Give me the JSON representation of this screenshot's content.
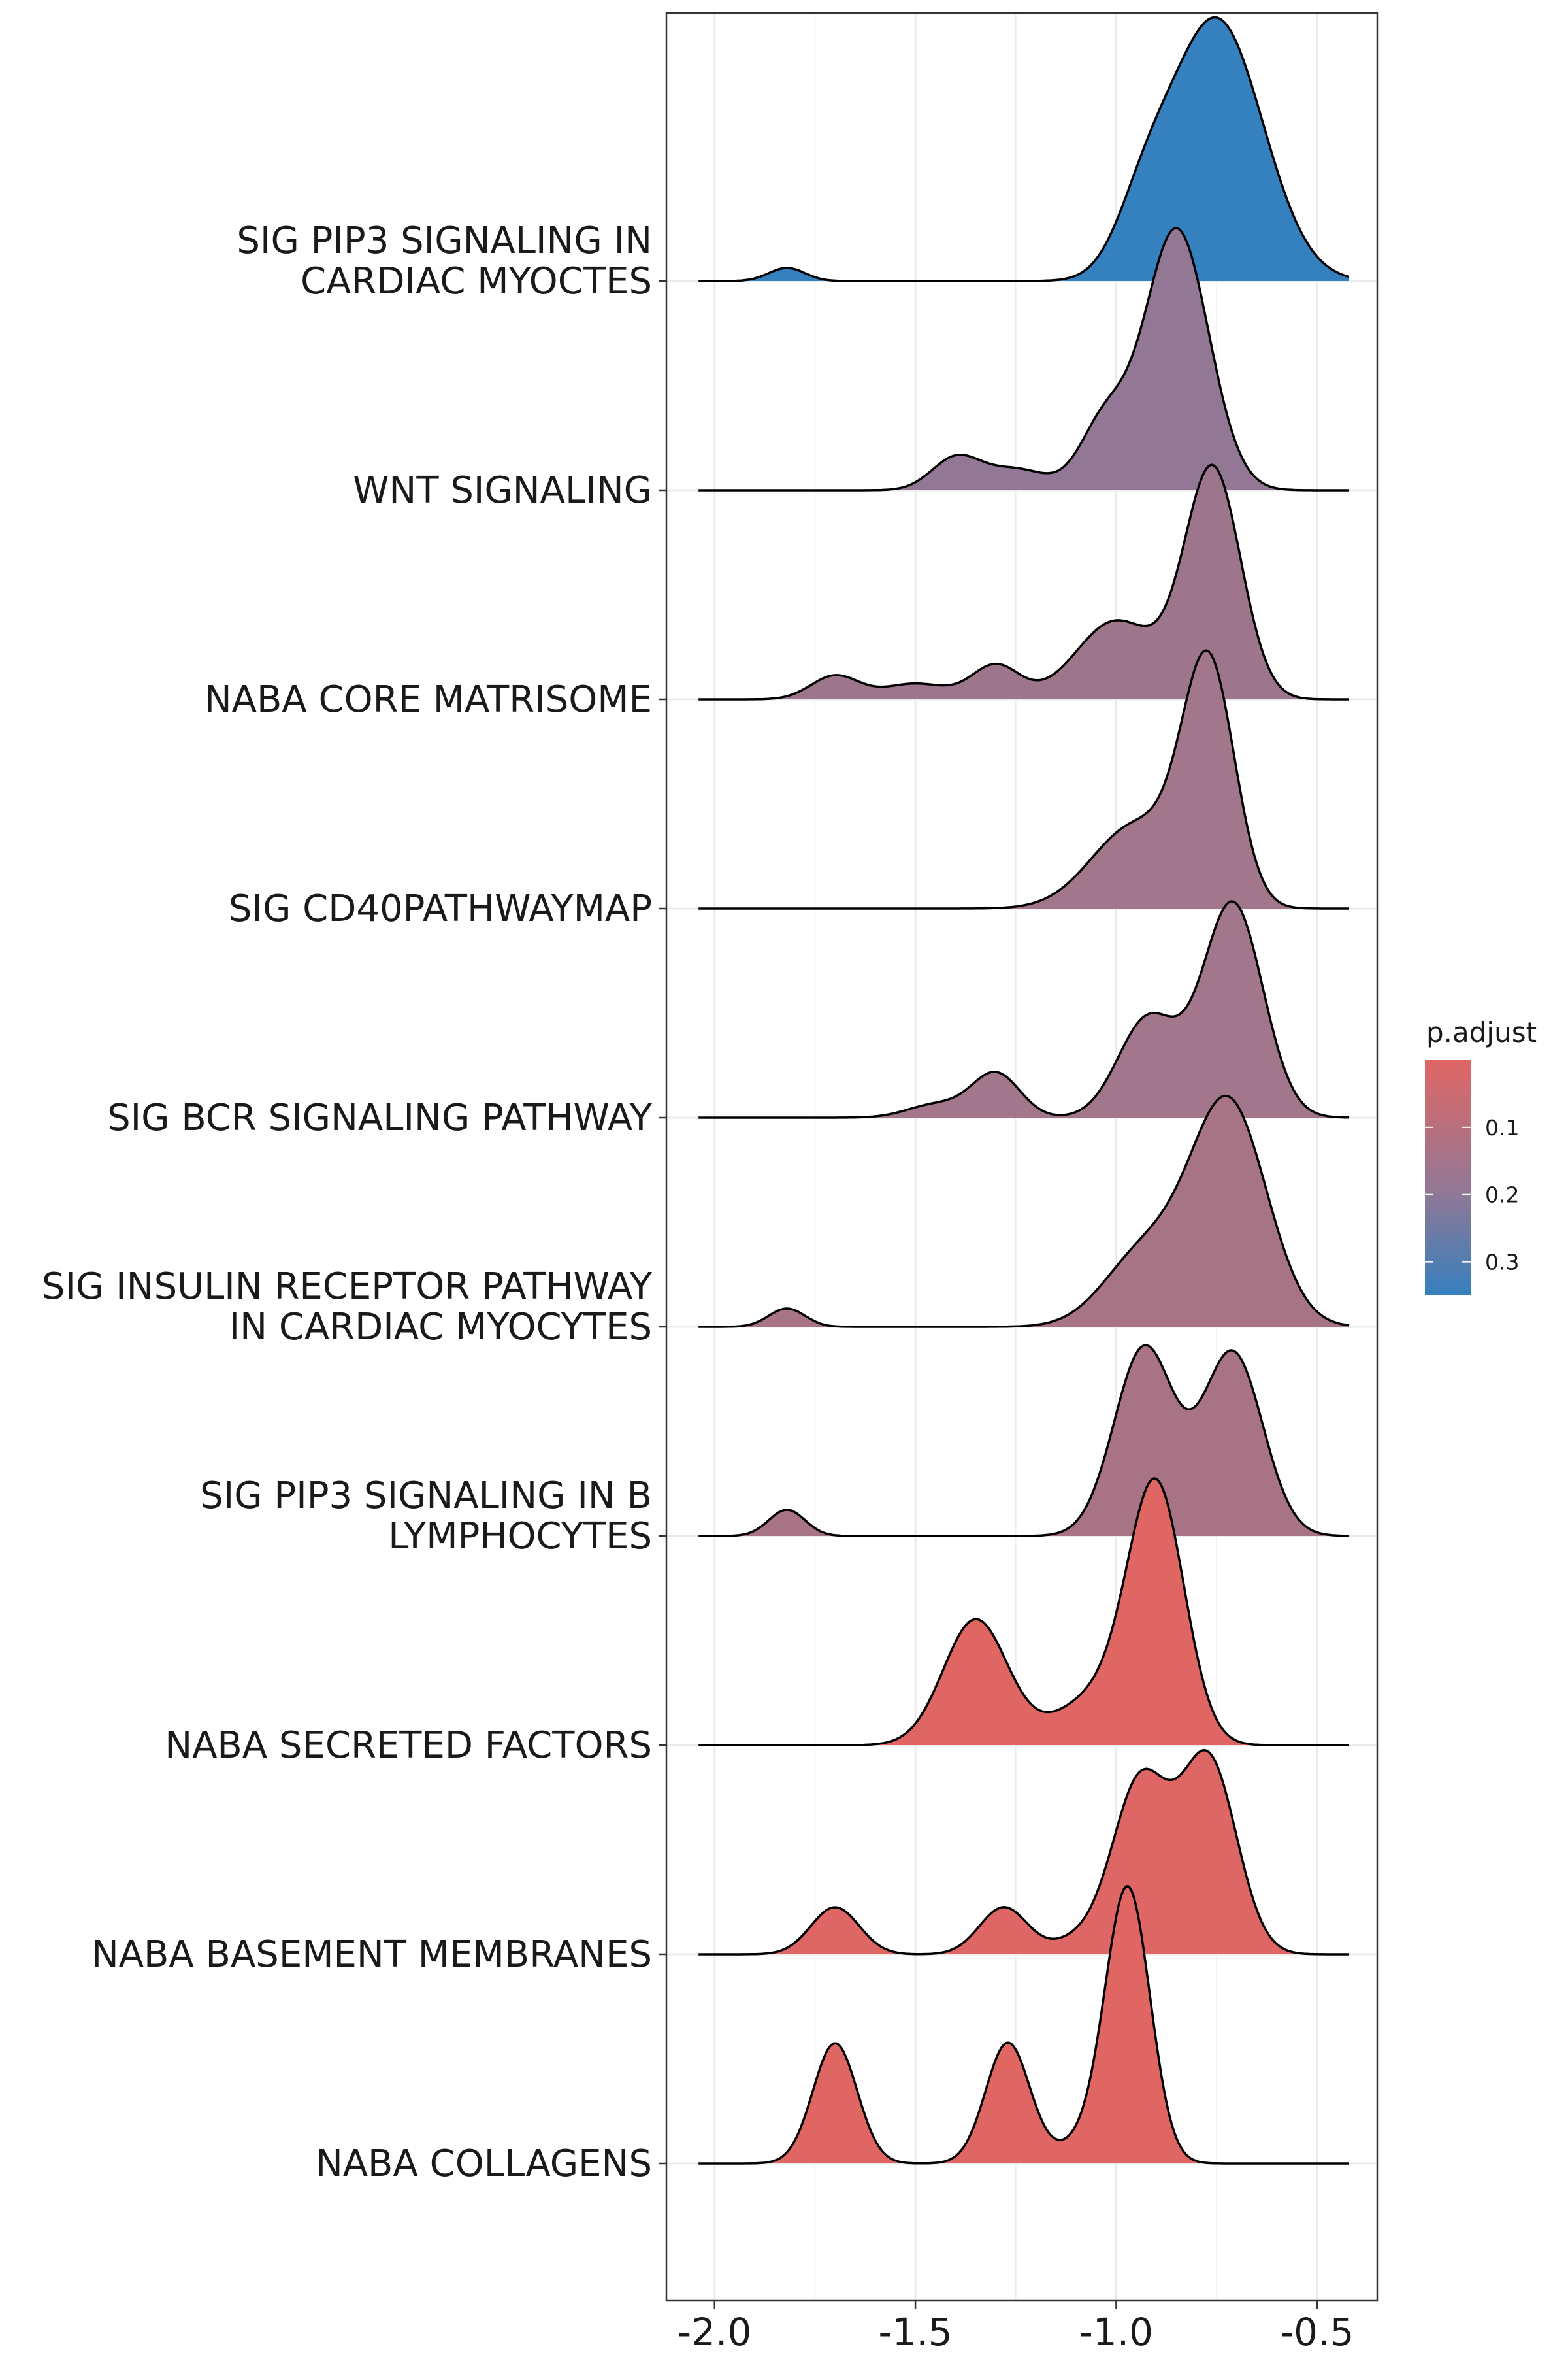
{
  "chart_data": {
    "type": "ridgeline",
    "x_ticks": [
      "-2.0",
      "-1.5",
      "-1.0",
      "-0.5"
    ],
    "x_tick_values": [
      -2.0,
      -1.5,
      -1.0,
      -0.5
    ],
    "xlim": [
      -2.12,
      -0.35
    ],
    "density_peak_scale": 1.25,
    "categories": [
      {
        "label_lines": [
          "SIG PIP3 SIGNALING IN",
          "CARDIAC MYOCTES"
        ],
        "p_adjust": 0.33,
        "fill": "#3580BE",
        "x_range": [
          -2.04,
          -0.42
        ],
        "components": [
          [
            -0.75,
            0.115,
            1.0
          ],
          [
            -0.93,
            0.07,
            0.22
          ],
          [
            -1.82,
            0.045,
            0.05
          ]
        ]
      },
      {
        "label_lines": [
          "WNT SIGNALING"
        ],
        "p_adjust": 0.22,
        "fill": "#937895",
        "x_range": [
          -2.04,
          -0.42
        ],
        "components": [
          [
            -0.85,
            0.08,
            1.0
          ],
          [
            -1.03,
            0.06,
            0.25
          ],
          [
            -1.4,
            0.06,
            0.12
          ],
          [
            -1.25,
            0.08,
            0.08
          ]
        ]
      },
      {
        "label_lines": [
          "NABA CORE MATRISOME"
        ],
        "p_adjust": 0.19,
        "fill": "#9E768C",
        "x_range": [
          -2.04,
          -0.42
        ],
        "components": [
          [
            -0.76,
            0.07,
            0.88
          ],
          [
            -1.0,
            0.1,
            0.3
          ],
          [
            -1.7,
            0.06,
            0.09
          ],
          [
            -1.3,
            0.06,
            0.13
          ],
          [
            -1.5,
            0.08,
            0.06
          ]
        ]
      },
      {
        "label_lines": [
          "SIG CD40PATHWAYMAP"
        ],
        "p_adjust": 0.18,
        "fill": "#A2768B",
        "x_range": [
          -2.04,
          -0.42
        ],
        "components": [
          [
            -0.77,
            0.065,
            0.9
          ],
          [
            -0.95,
            0.11,
            0.32
          ]
        ]
      },
      {
        "label_lines": [
          "SIG BCR SIGNALING PATHWAY"
        ],
        "p_adjust": 0.18,
        "fill": "#A2768B",
        "x_range": [
          -2.04,
          -0.42
        ],
        "components": [
          [
            -0.71,
            0.075,
            0.82
          ],
          [
            -0.92,
            0.075,
            0.38
          ],
          [
            -1.3,
            0.06,
            0.17
          ],
          [
            -1.45,
            0.07,
            0.05
          ]
        ]
      },
      {
        "label_lines": [
          "SIG INSULIN RECEPTOR PATHWAY",
          "IN CARDIAC MYOCYTES"
        ],
        "p_adjust": 0.17,
        "fill": "#A67485",
        "x_range": [
          -2.04,
          -0.42
        ],
        "components": [
          [
            -0.72,
            0.095,
            0.85
          ],
          [
            -0.93,
            0.1,
            0.28
          ],
          [
            -1.82,
            0.045,
            0.07
          ]
        ]
      },
      {
        "label_lines": [
          "SIG PIP3 SIGNALING IN B",
          "LYMPHOCYTES"
        ],
        "p_adjust": 0.16,
        "fill": "#A87385",
        "x_range": [
          -2.04,
          -0.42
        ],
        "components": [
          [
            -0.93,
            0.075,
            0.72
          ],
          [
            -0.71,
            0.075,
            0.7
          ],
          [
            -1.82,
            0.045,
            0.1
          ]
        ]
      },
      {
        "label_lines": [
          "NABA SECRETED FACTORS"
        ],
        "p_adjust": 0.05,
        "fill": "#E06664",
        "x_range": [
          -2.04,
          -0.42
        ],
        "components": [
          [
            -0.9,
            0.07,
            0.96
          ],
          [
            -1.35,
            0.08,
            0.48
          ],
          [
            -1.05,
            0.1,
            0.18
          ]
        ]
      },
      {
        "label_lines": [
          "NABA BASEMENT MEMBRANES"
        ],
        "p_adjust": 0.06,
        "fill": "#DE6664",
        "x_range": [
          -2.04,
          -0.42
        ],
        "components": [
          [
            -0.94,
            0.07,
            0.66
          ],
          [
            -0.77,
            0.07,
            0.74
          ],
          [
            -1.7,
            0.06,
            0.18
          ],
          [
            -1.28,
            0.06,
            0.18
          ],
          [
            -1.1,
            0.06,
            0.05
          ]
        ]
      },
      {
        "label_lines": [
          "NABA COLLAGENS"
        ],
        "p_adjust": 0.05,
        "fill": "#E06664",
        "x_range": [
          -2.04,
          -0.42
        ],
        "components": [
          [
            -0.97,
            0.055,
            1.0
          ],
          [
            -1.7,
            0.055,
            0.46
          ],
          [
            -1.27,
            0.055,
            0.46
          ],
          [
            -1.05,
            0.08,
            0.1
          ]
        ]
      }
    ],
    "legend": {
      "title": "p.adjust",
      "tick_labels": [
        "0.1",
        "0.2",
        "0.3"
      ],
      "tick_values": [
        0.1,
        0.2,
        0.3
      ],
      "range": [
        0.0,
        0.35
      ],
      "color_low": "#E06664",
      "color_mid": "#937895",
      "color_high": "#3580BE"
    },
    "grid": true,
    "legend_position": "right"
  }
}
